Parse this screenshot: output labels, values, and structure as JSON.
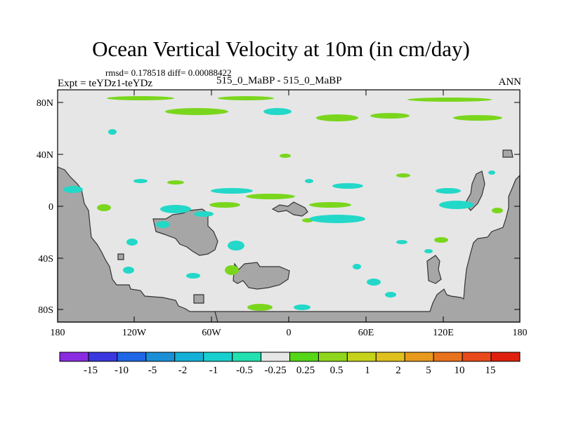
{
  "title": "Ocean Vertical Velocity at 10m (in cm/day)",
  "stats": "rmsd= 0.178518 diff= 0.00088422",
  "experiment": "Expt = teYDz1-teYDz",
  "cases": "515_0_MaBP - 515_0_MaBP",
  "season": "ANN",
  "y_ticks": [
    "80N",
    "40N",
    "0",
    "40S",
    "80S"
  ],
  "x_ticks": [
    "180",
    "120W",
    "60W",
    "0",
    "60E",
    "120E",
    "180"
  ],
  "colorbar": {
    "colors": [
      "#8a2be2",
      "#3a37e0",
      "#1f66e6",
      "#1a8fd6",
      "#14b0d8",
      "#18cfd0",
      "#22e0b0",
      "#e6e6e6",
      "#55d616",
      "#8fd51c",
      "#c6d21a",
      "#e0c01c",
      "#e89a1c",
      "#e8721c",
      "#e84a1c",
      "#e0200e"
    ],
    "labels": [
      "-15",
      "-10",
      "-5",
      "-2",
      "-1",
      "-0.5",
      "-0.25",
      "0.25",
      "0.5",
      "1",
      "2",
      "5",
      "10",
      "15"
    ]
  },
  "map_colors": {
    "ocean": "#e6e6e6",
    "land": "#a6a6a6",
    "positive": "#7ad61c",
    "negative": "#22d8c8"
  }
}
